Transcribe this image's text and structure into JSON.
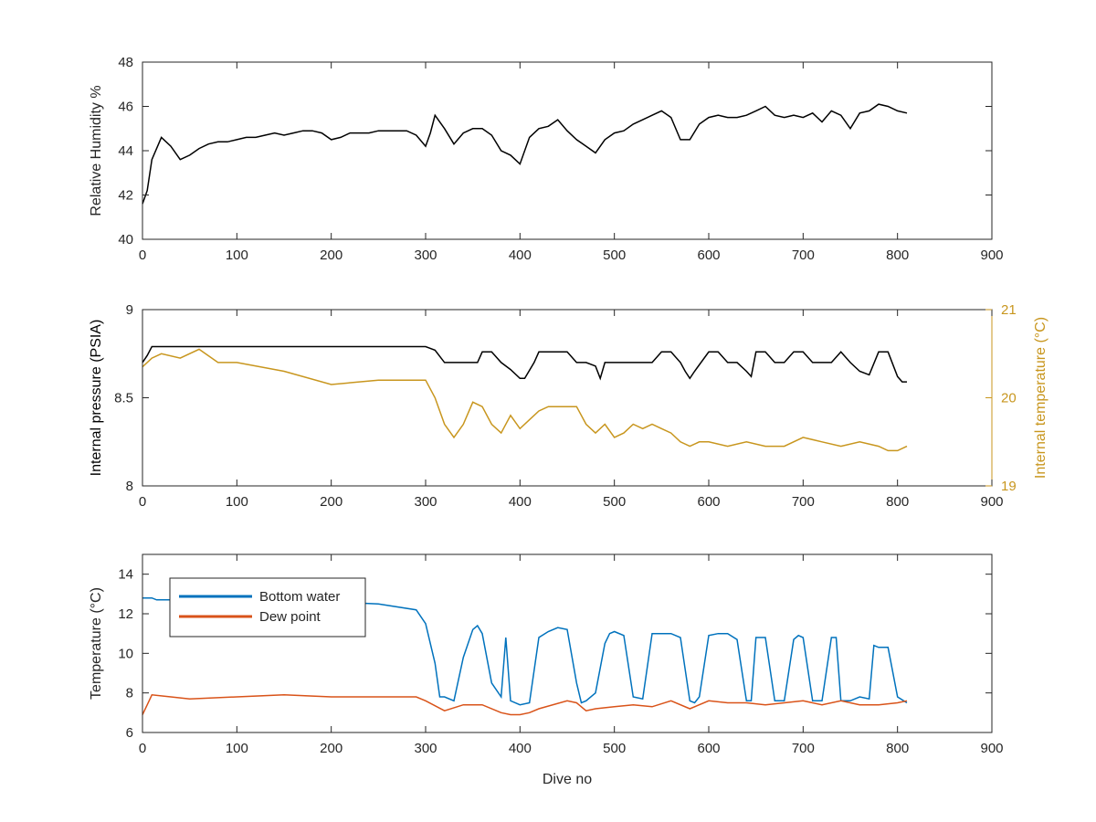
{
  "chart_data": [
    {
      "type": "line",
      "xlabel": "",
      "ylabel": "Relative Humidity %",
      "xlim": [
        0,
        900
      ],
      "ylim": [
        40,
        48
      ],
      "xticks": [
        "0",
        "100",
        "200",
        "300",
        "400",
        "500",
        "600",
        "700",
        "800",
        "900"
      ],
      "yticks": [
        "40",
        "42",
        "44",
        "46",
        "48"
      ],
      "series": [
        {
          "color": "#000000",
          "x": [
            0,
            5,
            10,
            20,
            30,
            40,
            50,
            60,
            70,
            80,
            90,
            100,
            110,
            120,
            130,
            140,
            150,
            160,
            170,
            180,
            190,
            200,
            210,
            220,
            230,
            240,
            250,
            260,
            270,
            280,
            290,
            300,
            305,
            310,
            320,
            330,
            340,
            350,
            360,
            370,
            380,
            390,
            400,
            410,
            420,
            430,
            440,
            450,
            460,
            470,
            480,
            490,
            500,
            510,
            520,
            530,
            540,
            550,
            560,
            570,
            580,
            590,
            600,
            610,
            620,
            630,
            640,
            650,
            660,
            670,
            680,
            690,
            700,
            710,
            720,
            730,
            740,
            750,
            760,
            770,
            780,
            790,
            800,
            810
          ],
          "y": [
            41.6,
            42.2,
            43.6,
            44.6,
            44.2,
            43.6,
            43.8,
            44.1,
            44.3,
            44.4,
            44.4,
            44.5,
            44.6,
            44.6,
            44.7,
            44.8,
            44.7,
            44.8,
            44.9,
            44.9,
            44.8,
            44.5,
            44.6,
            44.8,
            44.8,
            44.8,
            44.9,
            44.9,
            44.9,
            44.9,
            44.7,
            44.2,
            44.8,
            45.6,
            45.0,
            44.3,
            44.8,
            45.0,
            45.0,
            44.7,
            44.0,
            43.8,
            43.4,
            44.6,
            45.0,
            45.1,
            45.4,
            44.9,
            44.5,
            44.2,
            43.9,
            44.5,
            44.8,
            44.9,
            45.2,
            45.4,
            45.6,
            45.8,
            45.5,
            44.5,
            44.5,
            45.2,
            45.5,
            45.6,
            45.5,
            45.5,
            45.6,
            45.8,
            46.0,
            45.6,
            45.5,
            45.6,
            45.5,
            45.7,
            45.3,
            45.8,
            45.6,
            45.0,
            45.7,
            45.8,
            46.1,
            46.0,
            45.8,
            45.7
          ]
        }
      ]
    },
    {
      "type": "line",
      "xlabel": "",
      "ylabel": "Internal pressure (PSIA)",
      "ylabel_right": "Internal temperature (°C)",
      "xlim": [
        0,
        900
      ],
      "ylim": [
        8,
        9
      ],
      "ylim_right": [
        19,
        21
      ],
      "xticks": [
        "0",
        "100",
        "200",
        "300",
        "400",
        "500",
        "600",
        "700",
        "800",
        "900"
      ],
      "yticks": [
        "8",
        "8.5",
        "9"
      ],
      "yticks_right": [
        "19",
        "20",
        "21"
      ],
      "series": [
        {
          "axis": "left",
          "color": "#000000",
          "x": [
            0,
            5,
            10,
            50,
            100,
            150,
            200,
            250,
            290,
            300,
            310,
            320,
            340,
            355,
            360,
            370,
            380,
            390,
            400,
            405,
            415,
            420,
            430,
            440,
            450,
            460,
            470,
            480,
            485,
            490,
            500,
            510,
            540,
            550,
            560,
            570,
            575,
            580,
            585,
            600,
            610,
            620,
            630,
            640,
            645,
            650,
            660,
            670,
            680,
            690,
            700,
            710,
            730,
            740,
            750,
            760,
            770,
            780,
            790,
            800,
            805,
            810
          ],
          "y": [
            8.7,
            8.74,
            8.79,
            8.79,
            8.79,
            8.79,
            8.79,
            8.79,
            8.79,
            8.79,
            8.77,
            8.7,
            8.7,
            8.7,
            8.76,
            8.76,
            8.7,
            8.66,
            8.61,
            8.61,
            8.7,
            8.76,
            8.76,
            8.76,
            8.76,
            8.7,
            8.7,
            8.68,
            8.61,
            8.7,
            8.7,
            8.7,
            8.7,
            8.76,
            8.76,
            8.7,
            8.65,
            8.61,
            8.65,
            8.76,
            8.76,
            8.7,
            8.7,
            8.65,
            8.62,
            8.76,
            8.76,
            8.7,
            8.7,
            8.76,
            8.76,
            8.7,
            8.7,
            8.76,
            8.7,
            8.65,
            8.63,
            8.76,
            8.76,
            8.62,
            8.59,
            8.59
          ]
        },
        {
          "axis": "right",
          "color": "#c8961e",
          "x": [
            0,
            10,
            20,
            40,
            60,
            80,
            100,
            150,
            200,
            250,
            300,
            310,
            320,
            330,
            340,
            350,
            360,
            370,
            380,
            390,
            400,
            410,
            420,
            430,
            440,
            450,
            460,
            470,
            480,
            490,
            500,
            510,
            520,
            530,
            540,
            550,
            560,
            570,
            580,
            590,
            600,
            620,
            640,
            660,
            680,
            700,
            720,
            740,
            760,
            780,
            790,
            800,
            810
          ],
          "y": [
            20.35,
            20.45,
            20.5,
            20.45,
            20.55,
            20.4,
            20.4,
            20.3,
            20.15,
            20.2,
            20.2,
            20.0,
            19.7,
            19.55,
            19.7,
            19.95,
            19.9,
            19.7,
            19.6,
            19.8,
            19.65,
            19.75,
            19.85,
            19.9,
            19.9,
            19.9,
            19.9,
            19.7,
            19.6,
            19.7,
            19.55,
            19.6,
            19.7,
            19.65,
            19.7,
            19.65,
            19.6,
            19.5,
            19.45,
            19.5,
            19.5,
            19.45,
            19.5,
            19.45,
            19.45,
            19.55,
            19.5,
            19.45,
            19.5,
            19.45,
            19.4,
            19.4,
            19.45
          ]
        }
      ]
    },
    {
      "type": "line",
      "xlabel": "Dive no",
      "ylabel": "Temperature (°C)",
      "xlim": [
        0,
        900
      ],
      "ylim": [
        6,
        15
      ],
      "xticks": [
        "0",
        "100",
        "200",
        "300",
        "400",
        "500",
        "600",
        "700",
        "800",
        "900"
      ],
      "yticks": [
        "6",
        "8",
        "10",
        "12",
        "14"
      ],
      "legend": "top-left",
      "series": [
        {
          "name": "Bottom water",
          "color": "#0072bd",
          "x": [
            0,
            10,
            15,
            100,
            150,
            200,
            250,
            290,
            300,
            310,
            315,
            320,
            330,
            340,
            350,
            355,
            360,
            370,
            380,
            385,
            390,
            400,
            410,
            420,
            430,
            440,
            450,
            460,
            465,
            470,
            480,
            490,
            495,
            500,
            510,
            520,
            530,
            540,
            550,
            560,
            570,
            580,
            585,
            590,
            600,
            610,
            620,
            630,
            640,
            645,
            650,
            660,
            670,
            680,
            690,
            695,
            700,
            710,
            720,
            730,
            735,
            740,
            750,
            760,
            770,
            775,
            780,
            790,
            800,
            810
          ],
          "y": [
            12.8,
            12.8,
            12.7,
            12.7,
            12.6,
            12.6,
            12.5,
            12.2,
            11.5,
            9.5,
            7.8,
            7.8,
            7.6,
            9.8,
            11.2,
            11.4,
            11.0,
            8.5,
            7.8,
            10.8,
            7.6,
            7.4,
            7.5,
            10.8,
            11.1,
            11.3,
            11.2,
            8.5,
            7.5,
            7.6,
            8.0,
            10.5,
            11.0,
            11.1,
            10.9,
            7.8,
            7.7,
            11.0,
            11.0,
            11.0,
            10.8,
            7.6,
            7.5,
            7.8,
            10.9,
            11.0,
            11.0,
            10.7,
            7.6,
            7.6,
            10.8,
            10.8,
            7.6,
            7.6,
            10.7,
            10.9,
            10.8,
            7.6,
            7.6,
            10.8,
            10.8,
            7.6,
            7.6,
            7.8,
            7.7,
            10.4,
            10.3,
            10.3,
            7.8,
            7.5
          ]
        },
        {
          "name": "Dew point",
          "color": "#d95319",
          "x": [
            0,
            5,
            10,
            30,
            50,
            100,
            150,
            200,
            250,
            290,
            300,
            320,
            340,
            360,
            380,
            390,
            400,
            410,
            420,
            450,
            460,
            470,
            480,
            500,
            520,
            540,
            560,
            580,
            600,
            620,
            640,
            660,
            680,
            700,
            720,
            740,
            760,
            780,
            800,
            810
          ],
          "y": [
            6.9,
            7.4,
            7.9,
            7.8,
            7.7,
            7.8,
            7.9,
            7.8,
            7.8,
            7.8,
            7.6,
            7.1,
            7.4,
            7.4,
            7.0,
            6.9,
            6.9,
            7.0,
            7.2,
            7.6,
            7.5,
            7.1,
            7.2,
            7.3,
            7.4,
            7.3,
            7.6,
            7.2,
            7.6,
            7.5,
            7.5,
            7.4,
            7.5,
            7.6,
            7.4,
            7.6,
            7.4,
            7.4,
            7.5,
            7.6
          ]
        }
      ]
    }
  ]
}
